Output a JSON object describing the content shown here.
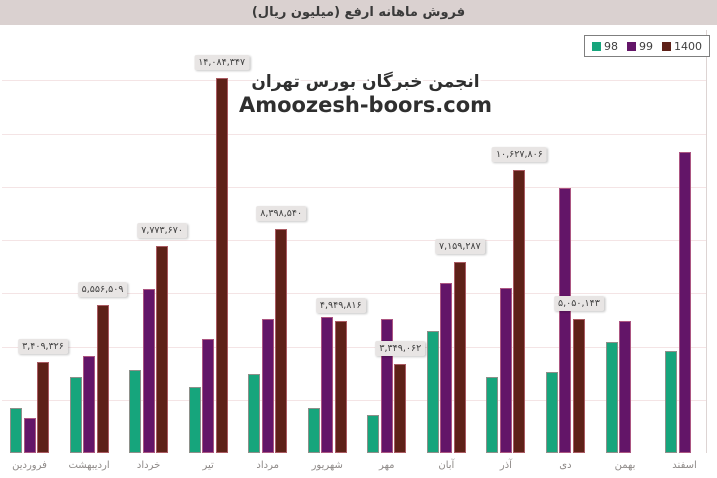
{
  "header": {
    "title": "فروش ماهانه ارفع (میلیون ریال)"
  },
  "watermark": {
    "line1_fa": "انجمن خبرگان بورس تهران",
    "line2_en": "Amoozesh-boors.com"
  },
  "colors": {
    "series_98": "#16a57c",
    "series_99": "#631568",
    "series_1400": "#5e2118",
    "title_strip_bg": "#dad1d0",
    "label_box_bg": "#e8e5e4"
  },
  "chart_data": {
    "type": "bar",
    "title": "فروش ماهانه ارفع (میلیون ریال)",
    "xlabel": "",
    "ylabel": "",
    "ylim": [
      0,
      15000000
    ],
    "grid": "faint horizontal every 2000000",
    "legend_position": "top-right",
    "categories": [
      "فروردین",
      "اردیبهشت",
      "خرداد",
      "تیر",
      "مرداد",
      "شهریور",
      "مهر",
      "آبان",
      "آذر",
      "دی",
      "بهمن",
      "اسفند"
    ],
    "series": [
      {
        "name": "98",
        "color": "#16a57c",
        "values": [
          1690000,
          2855000,
          3120000,
          2480000,
          2970000,
          1690000,
          1430000,
          4585000,
          2855000,
          3045000,
          4170000,
          3830000
        ]
      },
      {
        "name": "99",
        "color": "#631568",
        "values": [
          1315000,
          3645000,
          6160000,
          4285000,
          5035000,
          5110000,
          5035000,
          6390000,
          6200000,
          9955000,
          4960000,
          11310000
        ]
      },
      {
        "name": "1400",
        "color": "#5e2118",
        "values": [
          3409326,
          5556509,
          7773670,
          14084347,
          8398540,
          4949816,
          3349062,
          7159287,
          10627806,
          5050143,
          null,
          null
        ],
        "data_labels": [
          "۳,۴۰۹,۳۲۶",
          "۵,۵۵۶,۵۰۹",
          "۷,۷۷۳,۶۷۰",
          "۱۴,۰۸۴,۳۴۷",
          "۸,۳۹۸,۵۴۰",
          "۴,۹۴۹,۸۱۶",
          "۳,۳۴۹,۰۶۲",
          "۷,۱۵۹,۲۸۷",
          "۱۰,۶۲۷,۸۰۶",
          "۵,۰۵۰,۱۴۳",
          null,
          null
        ]
      }
    ]
  }
}
